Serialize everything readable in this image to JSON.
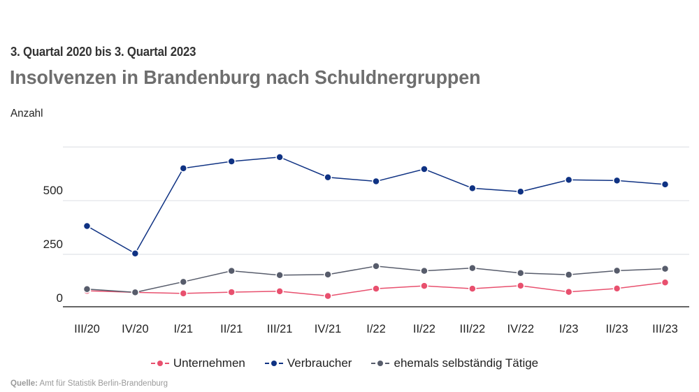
{
  "header": {
    "subtitle": "3. Quartal 2020 bis 3. Quartal 2023",
    "title": "Insolvenzen in Brandenburg nach Schuldnergruppen"
  },
  "source": {
    "label": "Quelle:",
    "text": "Amt für Statistik Berlin-Brandenburg"
  },
  "chart_data": {
    "type": "line",
    "title": "Insolvenzen in Brandenburg nach Schuldnergruppen",
    "subtitle": "3. Quartal 2020 bis 3. Quartal 2023",
    "xlabel": "",
    "ylabel": "Anzahl",
    "categories": [
      "III/20",
      "IV/20",
      "I/21",
      "II/21",
      "III/21",
      "IV/21",
      "I/22",
      "II/22",
      "III/22",
      "IV/22",
      "I/23",
      "II/23",
      "III/23"
    ],
    "ylim": [
      0,
      750
    ],
    "yticks": [
      0,
      250,
      500,
      750
    ],
    "ytick_labels": [
      "0",
      "250",
      "500",
      ""
    ],
    "grid": true,
    "legend_position": "bottom",
    "series": [
      {
        "name": "Unternehmen",
        "color": "#e8506e",
        "values": [
          80,
          73,
          68,
          74,
          78,
          56,
          90,
          103,
          90,
          104,
          75,
          91,
          119
        ]
      },
      {
        "name": "Verbraucher",
        "color": "#0f3283",
        "values": [
          382,
          254,
          651,
          683,
          703,
          609,
          590,
          647,
          558,
          542,
          597,
          594,
          576
        ]
      },
      {
        "name": "ehemals selbständig Tätige",
        "color": "#575c6b",
        "values": [
          88,
          73,
          122,
          173,
          153,
          156,
          195,
          173,
          186,
          163,
          155,
          174,
          183
        ]
      }
    ]
  }
}
